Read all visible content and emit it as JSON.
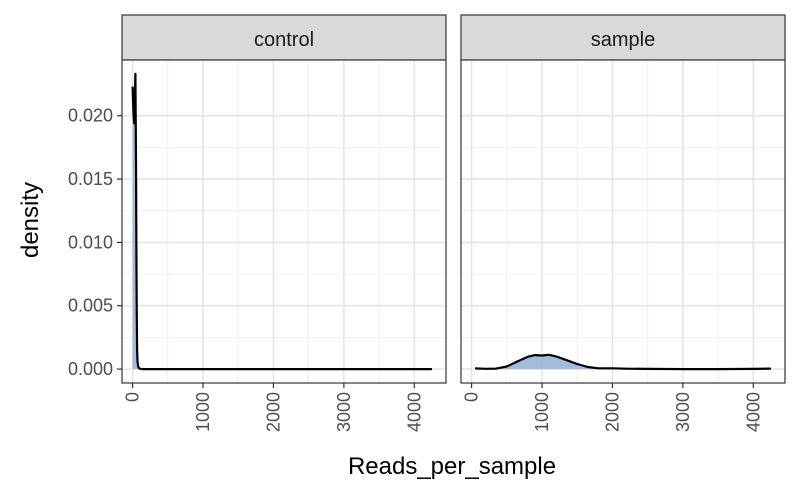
{
  "chart_data": {
    "type": "area",
    "facets": [
      "control",
      "sample"
    ],
    "xlabel": "Reads_per_sample",
    "ylabel": "density",
    "xlim": [
      -150,
      4450
    ],
    "ylim": [
      -0.0011,
      0.0244
    ],
    "xticks": [
      0,
      1000,
      2000,
      3000,
      4000
    ],
    "xtick_labels": [
      "0",
      "1000",
      "2000",
      "3000",
      "4000"
    ],
    "yticks": [
      0,
      0.005,
      0.01,
      0.015,
      0.02
    ],
    "ytick_labels": [
      "0.000",
      "0.005",
      "0.010",
      "0.015",
      "0.020"
    ],
    "grid": true,
    "fill_color": "#9ab5d6",
    "line_color": "#000000",
    "strip_color": "#d9d9d9",
    "series": [
      {
        "panel": "control",
        "x": [
          0,
          10,
          22,
          35,
          40,
          45,
          50,
          55,
          60,
          65,
          70,
          80,
          90,
          100,
          150,
          1000,
          2000,
          3000,
          4250
        ],
        "y": [
          0.0223,
          0.0205,
          0.0194,
          0.0221,
          0.0233,
          0.02,
          0.015,
          0.009,
          0.004,
          0.0015,
          0.0006,
          0.0002,
          8e-05,
          3e-05,
          0.0,
          0.0,
          0.0,
          0.0,
          0.0
        ]
      },
      {
        "panel": "sample",
        "x": [
          50,
          200,
          350,
          500,
          650,
          800,
          900,
          1000,
          1100,
          1200,
          1350,
          1500,
          1650,
          1800,
          2000,
          2200,
          2500,
          3000,
          3500,
          4000,
          4250
        ],
        "y": [
          5e-05,
          2e-05,
          4e-05,
          0.0002,
          0.0006,
          0.00098,
          0.0011,
          0.00107,
          0.00113,
          0.001,
          0.0007,
          0.0004,
          0.00016,
          6e-05,
          6e-05,
          3e-05,
          1e-05,
          0.0,
          0.0,
          1e-05,
          4e-05
        ]
      }
    ]
  }
}
